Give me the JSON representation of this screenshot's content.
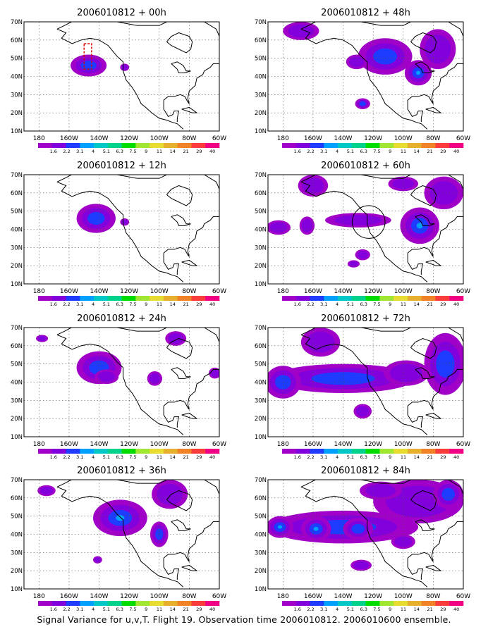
{
  "figure": {
    "caption": "Signal Variance for u,v,T. Flight 19. Observation time 2006010812. 2006010600 ensemble."
  },
  "colors": {
    "scale": [
      "#a000c8",
      "#8200dc",
      "#1e3cff",
      "#00a0ff",
      "#00c8c8",
      "#00d28c",
      "#00dc00",
      "#a0e632",
      "#e6dc32",
      "#e6af2d",
      "#f08228",
      "#fa3c3c",
      "#f00082"
    ],
    "land": "#000000",
    "grid": "#555555"
  },
  "chart_data": [
    {
      "type": "heatmap",
      "title": "2006010812 + 00h",
      "x_ticks": [
        "180",
        "160W",
        "140W",
        "120W",
        "100W",
        "80W",
        "60W"
      ],
      "y_ticks": [
        "10N",
        "20N",
        "30N",
        "40N",
        "50N",
        "60N",
        "70N"
      ],
      "xlim": [
        -190,
        -60
      ],
      "ylim": [
        10,
        70
      ],
      "colorbar_labels": [
        "1.6",
        "2.2",
        "3.1",
        "4",
        "5.1",
        "6.3",
        "7.5",
        "9",
        "11",
        "14",
        "21",
        "29",
        "40"
      ],
      "blobs": [
        {
          "lon": -147,
          "lat": 46,
          "rlon": 12,
          "rlat": 6,
          "level": 2
        },
        {
          "lon": -123,
          "lat": 45,
          "rlon": 3,
          "rlat": 2,
          "level": 1
        }
      ],
      "overlay_marks": [
        {
          "type": "box",
          "lon": [
            -150,
            -145
          ],
          "lat": [
            44,
            58
          ],
          "color": "#dc0000"
        }
      ]
    },
    {
      "type": "heatmap",
      "title": "2006010812 + 48h",
      "x_ticks": [
        "180",
        "160W",
        "140W",
        "120W",
        "100W",
        "80W",
        "60W"
      ],
      "y_ticks": [
        "10N",
        "20N",
        "30N",
        "40N",
        "50N",
        "60N",
        "70N"
      ],
      "xlim": [
        -190,
        -60
      ],
      "ylim": [
        10,
        70
      ],
      "colorbar_labels": [
        "1.6",
        "2.2",
        "3.1",
        "4",
        "5.1",
        "6.3",
        "7.5",
        "9",
        "11",
        "14",
        "21",
        "29",
        "40"
      ],
      "blobs": [
        {
          "lon": -168,
          "lat": 65,
          "rlon": 12,
          "rlat": 5,
          "level": 1
        },
        {
          "lon": -112,
          "lat": 51,
          "rlon": 18,
          "rlat": 10,
          "level": 2
        },
        {
          "lon": -90,
          "lat": 42,
          "rlon": 9,
          "rlat": 7,
          "level": 3
        },
        {
          "lon": -131,
          "lat": 48,
          "rlon": 7,
          "rlat": 4,
          "level": 1
        },
        {
          "lon": -77,
          "lat": 55,
          "rlon": 12,
          "rlat": 11,
          "level": 1
        },
        {
          "lon": -127,
          "lat": 25,
          "rlon": 5,
          "rlat": 3,
          "level": 2
        }
      ]
    },
    {
      "type": "heatmap",
      "title": "2006010812 + 12h",
      "x_ticks": [
        "180",
        "160W",
        "140W",
        "120W",
        "100W",
        "80W",
        "60W"
      ],
      "y_ticks": [
        "10N",
        "20N",
        "30N",
        "40N",
        "50N",
        "60N",
        "70N"
      ],
      "xlim": [
        -190,
        -60
      ],
      "ylim": [
        10,
        70
      ],
      "colorbar_labels": [
        "1.6",
        "2.2",
        "3.1",
        "4",
        "5.1",
        "6.3",
        "7.5",
        "9",
        "11",
        "14",
        "21",
        "29",
        "40"
      ],
      "blobs": [
        {
          "lon": -142,
          "lat": 46,
          "rlon": 13,
          "rlat": 8,
          "level": 2
        },
        {
          "lon": -123,
          "lat": 44,
          "rlon": 3,
          "rlat": 2,
          "level": 1
        }
      ]
    },
    {
      "type": "heatmap",
      "title": "2006010812 + 60h",
      "x_ticks": [
        "180",
        "160W",
        "140W",
        "120W",
        "100W",
        "80W",
        "60W"
      ],
      "y_ticks": [
        "10N",
        "20N",
        "30N",
        "40N",
        "50N",
        "60N",
        "70N"
      ],
      "xlim": [
        -190,
        -60
      ],
      "ylim": [
        10,
        70
      ],
      "colorbar_labels": [
        "1.6",
        "2.2",
        "3.1",
        "4",
        "5.1",
        "6.3",
        "7.5",
        "9",
        "11",
        "14",
        "21",
        "29",
        "40"
      ],
      "blobs": [
        {
          "lon": -160,
          "lat": 64,
          "rlon": 10,
          "rlat": 6,
          "level": 1
        },
        {
          "lon": -183,
          "lat": 41,
          "rlon": 8,
          "rlat": 4,
          "level": 1
        },
        {
          "lon": -164,
          "lat": 42,
          "rlon": 5,
          "rlat": 5,
          "level": 1
        },
        {
          "lon": -130,
          "lat": 45,
          "rlon": 22,
          "rlat": 4,
          "level": 1
        },
        {
          "lon": -89,
          "lat": 42,
          "rlon": 13,
          "rlat": 10,
          "level": 3
        },
        {
          "lon": -73,
          "lat": 60,
          "rlon": 13,
          "rlat": 9,
          "level": 1
        },
        {
          "lon": -100,
          "lat": 65,
          "rlon": 10,
          "rlat": 4,
          "level": 1
        },
        {
          "lon": -127,
          "lat": 26,
          "rlon": 5,
          "rlat": 3,
          "level": 1
        },
        {
          "lon": -133,
          "lat": 21,
          "rlon": 4,
          "rlat": 2,
          "level": 1
        }
      ],
      "overlay_marks": [
        {
          "type": "circle",
          "lon": -123,
          "lat": 44,
          "rlat": 9
        }
      ]
    },
    {
      "type": "heatmap",
      "title": "2006010812 + 24h",
      "x_ticks": [
        "180",
        "160W",
        "140W",
        "120W",
        "100W",
        "80W",
        "60W"
      ],
      "y_ticks": [
        "10N",
        "20N",
        "30N",
        "40N",
        "50N",
        "60N",
        "70N"
      ],
      "xlim": [
        -190,
        -60
      ],
      "ylim": [
        10,
        70
      ],
      "colorbar_labels": [
        "1.6",
        "2.2",
        "3.1",
        "4",
        "5.1",
        "6.3",
        "7.5",
        "9",
        "11",
        "14",
        "21",
        "29",
        "40"
      ],
      "blobs": [
        {
          "lon": -140,
          "lat": 48,
          "rlon": 15,
          "rlat": 9,
          "level": 2
        },
        {
          "lon": -135,
          "lat": 43,
          "rlon": 8,
          "rlat": 4,
          "level": 1
        },
        {
          "lon": -103,
          "lat": 42,
          "rlon": 5,
          "rlat": 4,
          "level": 1
        },
        {
          "lon": -89,
          "lat": 64,
          "rlon": 7,
          "rlat": 4,
          "level": 1
        },
        {
          "lon": -178,
          "lat": 64,
          "rlon": 4,
          "rlat": 2,
          "level": 1
        },
        {
          "lon": -63,
          "lat": 45,
          "rlon": 4,
          "rlat": 3,
          "level": 1
        }
      ]
    },
    {
      "type": "heatmap",
      "title": "2006010812 + 72h",
      "x_ticks": [
        "180",
        "160W",
        "140W",
        "120W",
        "100W",
        "80W",
        "60W"
      ],
      "y_ticks": [
        "10N",
        "20N",
        "30N",
        "40N",
        "50N",
        "60N",
        "70N"
      ],
      "xlim": [
        -190,
        -60
      ],
      "ylim": [
        10,
        70
      ],
      "colorbar_labels": [
        "1.6",
        "2.2",
        "3.1",
        "4",
        "5.1",
        "6.3",
        "7.5",
        "9",
        "11",
        "14",
        "21",
        "29",
        "40"
      ],
      "blobs": [
        {
          "lon": -140,
          "lat": 42,
          "rlon": 48,
          "rlat": 8,
          "level": 2
        },
        {
          "lon": -180,
          "lat": 40,
          "rlon": 12,
          "rlat": 9,
          "level": 2
        },
        {
          "lon": -155,
          "lat": 62,
          "rlon": 13,
          "rlat": 8,
          "level": 1
        },
        {
          "lon": -72,
          "lat": 50,
          "rlon": 14,
          "rlat": 17,
          "level": 2
        },
        {
          "lon": -98,
          "lat": 45,
          "rlon": 15,
          "rlat": 7,
          "level": 1
        },
        {
          "lon": -127,
          "lat": 24,
          "rlon": 6,
          "rlat": 4,
          "level": 1
        }
      ]
    },
    {
      "type": "heatmap",
      "title": "2006010812 + 36h",
      "x_ticks": [
        "180",
        "160W",
        "140W",
        "120W",
        "100W",
        "80W",
        "60W"
      ],
      "y_ticks": [
        "10N",
        "20N",
        "30N",
        "40N",
        "50N",
        "60N",
        "70N"
      ],
      "xlim": [
        -190,
        -60
      ],
      "ylim": [
        10,
        70
      ],
      "colorbar_labels": [
        "1.6",
        "2.2",
        "3.1",
        "4",
        "5.1",
        "6.3",
        "7.5",
        "9",
        "11",
        "14",
        "21",
        "29",
        "40"
      ],
      "blobs": [
        {
          "lon": -126,
          "lat": 49,
          "rlon": 18,
          "rlat": 10,
          "level": 3
        },
        {
          "lon": -100,
          "lat": 40,
          "rlon": 6,
          "rlat": 7,
          "level": 2
        },
        {
          "lon": -93,
          "lat": 62,
          "rlon": 12,
          "rlat": 8,
          "level": 1
        },
        {
          "lon": -175,
          "lat": 64,
          "rlon": 6,
          "rlat": 3,
          "level": 1
        },
        {
          "lon": -141,
          "lat": 26,
          "rlon": 3,
          "rlat": 2,
          "level": 1
        }
      ]
    },
    {
      "type": "heatmap",
      "title": "2006010812 + 84h",
      "x_ticks": [
        "180",
        "160W",
        "140W",
        "120W",
        "100W",
        "80W",
        "60W"
      ],
      "y_ticks": [
        "10N",
        "20N",
        "30N",
        "40N",
        "50N",
        "60N",
        "70N"
      ],
      "xlim": [
        -190,
        -60
      ],
      "ylim": [
        10,
        70
      ],
      "colorbar_labels": [
        "1.6",
        "2.2",
        "3.1",
        "4",
        "5.1",
        "6.3",
        "7.5",
        "9",
        "11",
        "14",
        "21",
        "29",
        "40"
      ],
      "blobs": [
        {
          "lon": -140,
          "lat": 44,
          "rlon": 50,
          "rlat": 9,
          "level": 2
        },
        {
          "lon": -158,
          "lat": 43,
          "rlon": 10,
          "rlat": 7,
          "level": 3
        },
        {
          "lon": -182,
          "lat": 44,
          "rlon": 9,
          "rlat": 6,
          "level": 3
        },
        {
          "lon": -130,
          "lat": 43,
          "rlon": 10,
          "rlat": 6,
          "level": 2
        },
        {
          "lon": -90,
          "lat": 58,
          "rlon": 30,
          "rlat": 12,
          "level": 1
        },
        {
          "lon": -70,
          "lat": 62,
          "rlon": 10,
          "rlat": 8,
          "level": 2
        },
        {
          "lon": -115,
          "lat": 64,
          "rlon": 14,
          "rlat": 5,
          "level": 1
        },
        {
          "lon": -128,
          "lat": 23,
          "rlon": 7,
          "rlat": 3,
          "level": 1
        },
        {
          "lon": -100,
          "lat": 36,
          "rlon": 8,
          "rlat": 4,
          "level": 1
        }
      ]
    }
  ]
}
